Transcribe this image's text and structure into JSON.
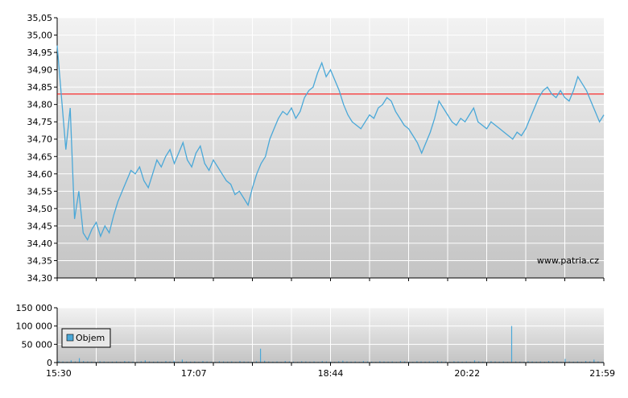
{
  "chart_data": [
    {
      "type": "line",
      "title": "",
      "xlabel": "",
      "ylabel": "",
      "ylim": [
        34.3,
        35.05
      ],
      "yticks": [
        "34,30",
        "34,35",
        "34,40",
        "34,45",
        "34,50",
        "34,55",
        "34,60",
        "34,65",
        "34,70",
        "34,75",
        "34,80",
        "34,85",
        "34,90",
        "34,95",
        "35,00",
        "35,05"
      ],
      "reference_line": 34.83,
      "grid": true,
      "watermark": "www.patria.cz",
      "colors": {
        "line": "#4aa8d8",
        "reference": "#ff0000",
        "grid": "#ffffff",
        "bg_top": "#f2f2f2",
        "bg_bottom": "#c4c4c4"
      },
      "series": [
        {
          "values": [
            34.97,
            34.82,
            34.67,
            34.79,
            34.47,
            34.55,
            34.43,
            34.41,
            34.44,
            34.46,
            34.42,
            34.45,
            34.43,
            34.48,
            34.52,
            34.55,
            34.58,
            34.61,
            34.6,
            34.62,
            34.58,
            34.56,
            34.6,
            34.64,
            34.62,
            34.65,
            34.67,
            34.63,
            34.66,
            34.69,
            34.64,
            34.62,
            34.66,
            34.68,
            34.63,
            34.61,
            34.64,
            34.62,
            34.6,
            34.58,
            34.57,
            34.54,
            34.55,
            34.53,
            34.51,
            34.56,
            34.6,
            34.63,
            34.65,
            34.7,
            34.73,
            34.76,
            34.78,
            34.77,
            34.79,
            34.76,
            34.78,
            34.82,
            34.84,
            34.85,
            34.89,
            34.92,
            34.88,
            34.9,
            34.87,
            34.84,
            34.8,
            34.77,
            34.75,
            34.74,
            34.73,
            34.75,
            34.77,
            34.76,
            34.79,
            34.8,
            34.82,
            34.81,
            34.78,
            34.76,
            34.74,
            34.73,
            34.71,
            34.69,
            34.66,
            34.69,
            34.72,
            34.76,
            34.81,
            34.79,
            34.77,
            34.75,
            34.74,
            34.76,
            34.75,
            34.77,
            34.79,
            34.75,
            34.74,
            34.73,
            34.75,
            34.74,
            34.73,
            34.72,
            34.71,
            34.7,
            34.72,
            34.71,
            34.73,
            34.76,
            34.79,
            34.82,
            34.84,
            34.85,
            34.83,
            34.82,
            34.84,
            34.82,
            34.81,
            34.84,
            34.88,
            34.86,
            34.84,
            34.81,
            34.78,
            34.75,
            34.77
          ]
        }
      ]
    },
    {
      "type": "bar",
      "title": "",
      "ylim": [
        0,
        150000
      ],
      "yticks": [
        "0",
        "50 000",
        "100 000",
        "150 000"
      ],
      "xticks": [
        "15:30",
        "17:07",
        "18:44",
        "20:22",
        "21:59"
      ],
      "legend": {
        "label": "Objem",
        "placement": "top-left"
      },
      "colors": {
        "bar": "#4aa8d8"
      },
      "series": [
        {
          "name": "Objem",
          "values": [
            4000,
            3000,
            2500,
            6000,
            3000,
            12000,
            4000,
            3000,
            2500,
            2000,
            3500,
            3000,
            2000,
            2500,
            3000,
            2000,
            4000,
            3000,
            2500,
            2000,
            3500,
            6000,
            3000,
            2500,
            3000,
            2000,
            4000,
            3000,
            5000,
            2000,
            8000,
            3000,
            2500,
            3000,
            2000,
            4000,
            3000,
            2500,
            2000,
            3500,
            3000,
            2500,
            3000,
            2000,
            4000,
            3000,
            2500,
            2000,
            3500,
            38000,
            5000,
            3000,
            2500,
            3000,
            2000,
            4000,
            3000,
            2500,
            2000,
            3500,
            3000,
            2500,
            3000,
            2000,
            4000,
            3000,
            2500,
            2000,
            3500,
            5000,
            3000,
            2500,
            3000,
            2000,
            4000,
            3000,
            2500,
            2000,
            3500,
            3000,
            2500,
            3000,
            2000,
            4000,
            3000,
            2500,
            2000,
            3500,
            3000,
            2500,
            3000,
            2000,
            4000,
            3000,
            2500,
            2000,
            3500,
            3000,
            2500,
            3000,
            2000,
            6000,
            3000,
            2500,
            2000,
            3500,
            3000,
            2500,
            3000,
            2000,
            100000,
            3000,
            2500,
            2000,
            3500,
            3000,
            2500,
            3000,
            2000,
            4000,
            3000,
            2500,
            2000,
            10000,
            3000,
            2500,
            3000,
            2000,
            4000,
            3000,
            8000,
            3000,
            2000
          ]
        }
      ]
    }
  ]
}
